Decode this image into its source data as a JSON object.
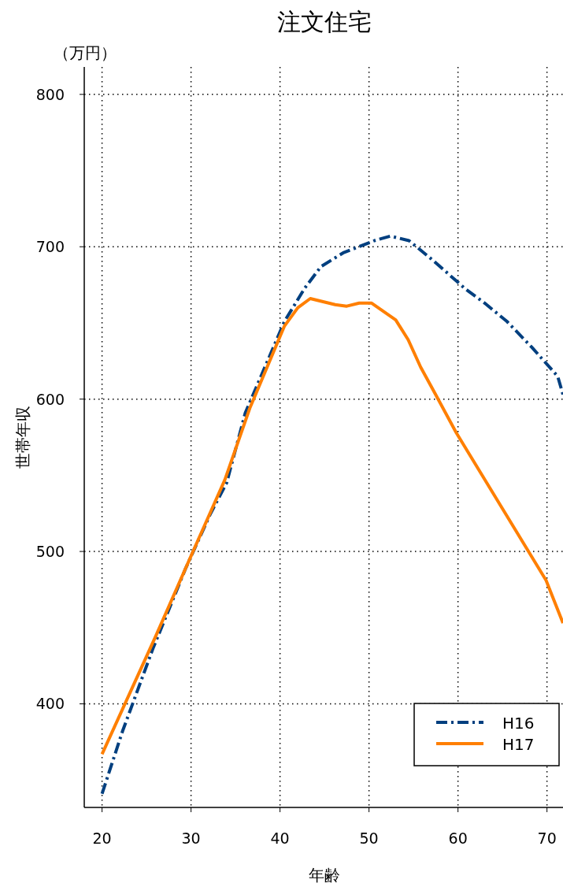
{
  "chart_data": {
    "type": "line",
    "title": "注文住宅",
    "ylabel": "世帯年収",
    "xlabel": "年齢",
    "annotations": [
      "（万円）"
    ],
    "xlim": [
      18,
      71.8
    ],
    "ylim": [
      332,
      818
    ],
    "xticks": [
      20,
      30,
      40,
      50,
      60,
      70
    ],
    "yticks": [
      400,
      500,
      600,
      700,
      800
    ],
    "grid": true,
    "legend": "bottom right",
    "series": [
      {
        "name": "H16",
        "color": "#003f7f",
        "line_style": "dashdot",
        "x": [
          20,
          22.3,
          25.7,
          29.4,
          32.2,
          34.0,
          36.1,
          40.5,
          42.8,
          44.6,
          47.1,
          50.6,
          52.4,
          54.5,
          57.0,
          60.9,
          63.0,
          65.5,
          68.3,
          71.2,
          71.8
        ],
        "values": [
          341,
          382,
          436,
          489,
          525,
          545,
          591,
          651,
          673,
          687,
          696,
          704,
          707,
          704,
          692,
          672,
          663,
          651,
          634,
          615,
          603
        ]
      },
      {
        "name": "H17",
        "color": "#ff7f00",
        "line_style": "solid",
        "x": [
          20,
          26.0,
          30.3,
          33.8,
          36.6,
          40.5,
          42.0,
          43.4,
          46.2,
          47.5,
          48.9,
          50.3,
          53.0,
          54.4,
          55.8,
          57.3,
          59.8,
          69.9,
          71.8
        ],
        "values": [
          367,
          444,
          501,
          547,
          594,
          648,
          660,
          666,
          662,
          661,
          663,
          663,
          652,
          639,
          621,
          605,
          578,
          481,
          453
        ]
      }
    ]
  }
}
